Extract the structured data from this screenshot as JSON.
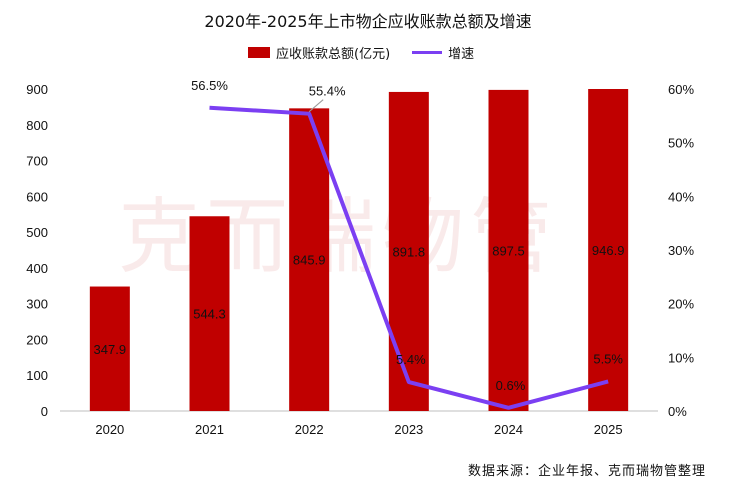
{
  "chart_data": {
    "type": "bar",
    "title": "2020年-2025年上市物企应收账款总额及增速",
    "categories": [
      "2020",
      "2021",
      "2022",
      "2023",
      "2024",
      "2025"
    ],
    "series": [
      {
        "name": "应收账款总额(亿元)",
        "type": "bar",
        "axis": "left",
        "values": [
          347.9,
          544.3,
          845.9,
          891.8,
          897.5,
          946.9
        ],
        "labels": [
          "347.9",
          "544.3",
          "845.9",
          "891.8",
          "897.5",
          "946.9"
        ],
        "color": "#c00000"
      },
      {
        "name": "增速",
        "type": "line",
        "axis": "right",
        "values": [
          null,
          56.5,
          55.4,
          5.4,
          0.6,
          5.5
        ],
        "labels": [
          "",
          "56.5%",
          "55.4%",
          "5.4%",
          "0.6%",
          "5.5%"
        ],
        "color": "#7b3ff2"
      }
    ],
    "y_left": {
      "range": [
        0,
        900
      ],
      "ticks": [
        "0",
        "100",
        "200",
        "300",
        "400",
        "500",
        "600",
        "700",
        "800",
        "900"
      ]
    },
    "y_right": {
      "range": [
        0,
        60
      ],
      "ticks": [
        "0%",
        "10%",
        "20%",
        "30%",
        "40%",
        "50%",
        "60%"
      ]
    },
    "grid": false,
    "legend_position": "top-center"
  },
  "source": "数据来源：企业年报、克而瑞物管整理",
  "watermark": "克而瑞物管"
}
